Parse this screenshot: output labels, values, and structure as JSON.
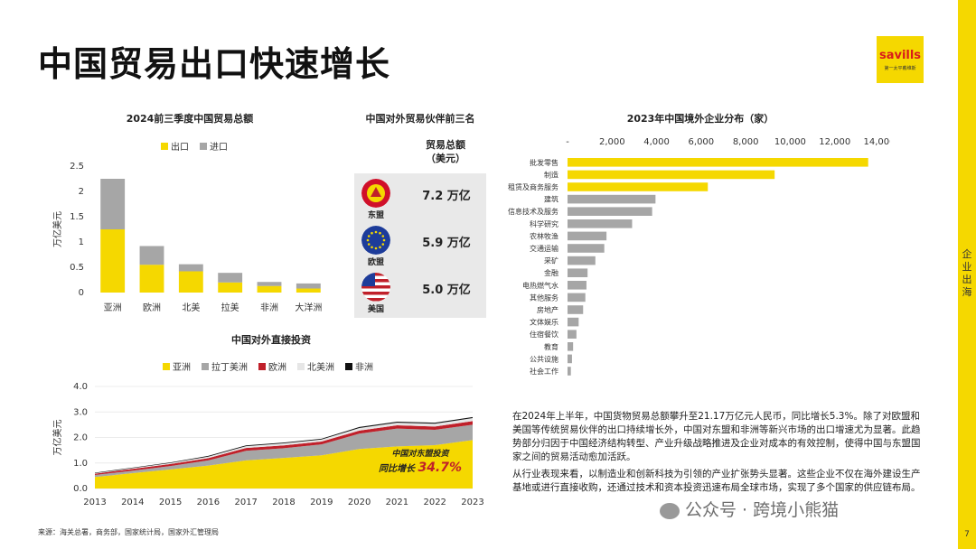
{
  "title": "中国贸易出口快速增长",
  "logo": {
    "brand": "savills",
    "sub": "第一太平戴维斯"
  },
  "side_label": "企业出海",
  "page_number": "7",
  "accent": "#f5d800",
  "trade": {
    "title": "2024前三季度中国贸易总额",
    "legend": [
      "出口",
      "进口"
    ],
    "ylabel": "万亿美元",
    "yticks": [
      "2.5",
      "2",
      "1.5",
      "1",
      "0.5",
      "0"
    ],
    "colors": {
      "export": "#f5d800",
      "import": "#a6a6a6"
    }
  },
  "partners": {
    "title": "中国对外贸易伙伴前三名",
    "header_line1": "贸易总额",
    "header_line2": "（美元）",
    "items": [
      {
        "name": "东盟",
        "value": "7.2 万亿",
        "icon": "asean-flag-icon"
      },
      {
        "name": "欧盟",
        "value": "5.9 万亿",
        "icon": "eu-flag-icon"
      },
      {
        "name": "美国",
        "value": "5.0 万亿",
        "icon": "us-flag-icon"
      }
    ]
  },
  "fdi": {
    "title": "中国对外直接投资",
    "legend": [
      "亚洲",
      "拉丁美洲",
      "欧洲",
      "北美洲",
      "非洲"
    ],
    "ylabel": "万亿美元",
    "yticks": [
      "4.0",
      "3.0",
      "2.0",
      "1.0",
      "0.0"
    ],
    "annotation_line1": "中国对东盟投资",
    "annotation_line2_prefix": "同比增长",
    "annotation_value": "34.7%",
    "colors": {
      "asia": "#f5d800",
      "latam": "#a6a6a6",
      "europe": "#c0202a",
      "namerica": "#e6e6e6",
      "africa": "#111111"
    }
  },
  "distribution": {
    "title": "2023年中国境外企业分布（家）",
    "xticks": [
      "-",
      "2,000",
      "4,000",
      "6,000",
      "8,000",
      "10,000",
      "12,000",
      "14,000"
    ]
  },
  "body": {
    "p1": "在2024年上半年，中国货物贸易总额攀升至21.17万亿元人民币，同比增长5.3%。除了对欧盟和美国等传统贸易伙伴的出口持续增长外，中国对东盟和非洲等新兴市场的出口增速尤为显著。此趋势部分归因于中国经济结构转型、产业升级战略推进及企业对成本的有效控制，使得中国与东盟国家之间的贸易活动愈加活跃。",
    "p2": "从行业表现来看，以制造业和创新科技为引领的产业扩张势头显著。这些企业不仅在海外建设生产基地或进行直接收购，还通过技术和资本投资迅速布局全球市场，实现了多个国家的供应链布局。"
  },
  "source": "来源：海关总署，商务部，国家统计局，国家外汇管理局",
  "watermark": "公众号 · 跨境小熊猫",
  "chart_data": [
    {
      "type": "bar",
      "title": "2024前三季度中国贸易总额",
      "categories": [
        "亚洲",
        "欧洲",
        "北美",
        "拉美",
        "非洲",
        "大洋洲"
      ],
      "series": [
        {
          "name": "出口",
          "values": [
            1.25,
            0.55,
            0.42,
            0.2,
            0.13,
            0.08
          ]
        },
        {
          "name": "进口",
          "values": [
            1.0,
            0.37,
            0.14,
            0.19,
            0.08,
            0.1
          ]
        }
      ],
      "ylabel": "万亿美元",
      "ylim": [
        0,
        2.5
      ],
      "stacked": true
    },
    {
      "type": "area",
      "title": "中国对外直接投资",
      "x": [
        2013,
        2014,
        2015,
        2016,
        2017,
        2018,
        2019,
        2020,
        2021,
        2022,
        2023
      ],
      "series": [
        {
          "name": "亚洲",
          "values": [
            0.45,
            0.6,
            0.75,
            0.9,
            1.1,
            1.2,
            1.3,
            1.55,
            1.65,
            1.7,
            1.9
          ]
        },
        {
          "name": "拉丁美洲",
          "values": [
            0.08,
            0.1,
            0.13,
            0.2,
            0.38,
            0.38,
            0.43,
            0.6,
            0.7,
            0.6,
            0.6
          ]
        },
        {
          "name": "欧洲",
          "values": [
            0.05,
            0.07,
            0.08,
            0.09,
            0.11,
            0.11,
            0.11,
            0.12,
            0.13,
            0.13,
            0.14
          ]
        },
        {
          "name": "北美洲",
          "values": [
            0.02,
            0.03,
            0.04,
            0.06,
            0.07,
            0.08,
            0.08,
            0.1,
            0.1,
            0.11,
            0.12
          ]
        },
        {
          "name": "非洲",
          "values": [
            0.02,
            0.02,
            0.02,
            0.03,
            0.03,
            0.03,
            0.03,
            0.04,
            0.04,
            0.04,
            0.04
          ]
        }
      ],
      "ylabel": "万亿美元",
      "ylim": [
        0,
        4.0
      ],
      "stacked": true
    },
    {
      "type": "bar",
      "orientation": "horizontal",
      "title": "2023年中国境外企业分布（家）",
      "categories": [
        "批发零售",
        "制造",
        "租赁及商务服务",
        "建筑",
        "信息技术及服务",
        "科学研究",
        "农林牧渔",
        "交通运输",
        "采矿",
        "金融",
        "电热燃气水",
        "其他服务",
        "房地产",
        "文体娱乐",
        "住宿餐饮",
        "教育",
        "公共设施",
        "社会工作"
      ],
      "values": [
        13500,
        9300,
        6300,
        3950,
        3800,
        2900,
        1750,
        1650,
        1250,
        900,
        850,
        800,
        700,
        500,
        400,
        250,
        200,
        150
      ],
      "xlim": [
        0,
        14000
      ]
    }
  ]
}
